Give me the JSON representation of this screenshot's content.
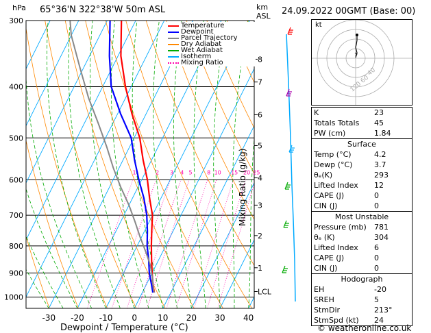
{
  "header": {
    "hpa_label": "hPa",
    "location": "65°36'N  322°38'W  50m  ASL",
    "km_label": "km",
    "asl_label": "ASL",
    "datetime": "24.09.2022  00GMT  (Base: 00)"
  },
  "legend": [
    {
      "label": "Temperature",
      "color": "#ff0000",
      "style": "solid"
    },
    {
      "label": "Dewpoint",
      "color": "#0000ff",
      "style": "solid"
    },
    {
      "label": "Parcel Trajectory",
      "color": "#888888",
      "style": "solid"
    },
    {
      "label": "Dry Adiabat",
      "color": "#ff8800",
      "style": "solid"
    },
    {
      "label": "Wet Adiabat",
      "color": "#00aa00",
      "style": "solid"
    },
    {
      "label": "Isotherm",
      "color": "#00aaff",
      "style": "solid"
    },
    {
      "label": "Mixing Ratio",
      "color": "#ff00aa",
      "style": "dotted"
    }
  ],
  "chart_data": {
    "type": "line",
    "xlabel": "Dewpoint / Temperature (°C)",
    "ylabel": "hPa",
    "right_label": "Mixing Ratio (g/kg)",
    "x_ticks": [
      "-30",
      "-20",
      "-10",
      "0",
      "10",
      "20",
      "30",
      "40"
    ],
    "x_tick_values": [
      -30,
      -20,
      -10,
      0,
      10,
      20,
      30,
      40
    ],
    "xlim": [
      -38,
      42
    ],
    "pressure_levels": [
      300,
      400,
      500,
      600,
      700,
      800,
      900,
      1000
    ],
    "pressure_labels": [
      "300",
      "400",
      "500",
      "600",
      "700",
      "800",
      "900",
      "1000"
    ],
    "ylim": [
      300,
      1050
    ],
    "skew": 1.0,
    "km_ticks": [
      "8",
      "7",
      "6",
      "5",
      "4",
      "3",
      "2",
      "1",
      "LCL"
    ],
    "km_tick_pressures": [
      355,
      392,
      452,
      517,
      595,
      670,
      765,
      880,
      976
    ],
    "mixing_ratio_labels": [
      "1",
      "2",
      "3",
      "4",
      "5",
      "8",
      "10",
      "15",
      "20",
      "25"
    ],
    "mixing_ratio_values": [
      1,
      2,
      3,
      4,
      5,
      8,
      10,
      15,
      20,
      25
    ],
    "mixing_ratio_label_pressure": 590,
    "series": [
      {
        "name": "Temperature",
        "color": "#ff0000",
        "points": [
          [
            4.2,
            980
          ],
          [
            2.5,
            950
          ],
          [
            0,
            900
          ],
          [
            -2.5,
            850
          ],
          [
            -5,
            800
          ],
          [
            -7.5,
            750
          ],
          [
            -10,
            700
          ],
          [
            -14,
            650
          ],
          [
            -18,
            600
          ],
          [
            -23,
            550
          ],
          [
            -28,
            500
          ],
          [
            -35,
            450
          ],
          [
            -42,
            400
          ],
          [
            -49,
            350
          ],
          [
            -55,
            300
          ]
        ]
      },
      {
        "name": "Dewpoint",
        "color": "#0000ff",
        "points": [
          [
            3.7,
            980
          ],
          [
            2,
            950
          ],
          [
            -1,
            900
          ],
          [
            -3.5,
            850
          ],
          [
            -6.5,
            800
          ],
          [
            -9,
            750
          ],
          [
            -12,
            700
          ],
          [
            -16,
            650
          ],
          [
            -21,
            600
          ],
          [
            -26,
            550
          ],
          [
            -31,
            500
          ],
          [
            -39,
            450
          ],
          [
            -47,
            400
          ],
          [
            -53,
            350
          ],
          [
            -59,
            300
          ]
        ]
      },
      {
        "name": "Parcel Trajectory",
        "color": "#888888",
        "points": [
          [
            4.2,
            980
          ],
          [
            3.5,
            970
          ],
          [
            1,
            920
          ],
          [
            -2,
            870
          ],
          [
            -6,
            820
          ],
          [
            -10.5,
            770
          ],
          [
            -15,
            720
          ],
          [
            -20,
            670
          ],
          [
            -26,
            620
          ],
          [
            -32,
            570
          ],
          [
            -38,
            520
          ],
          [
            -45,
            470
          ],
          [
            -53,
            420
          ],
          [
            -61,
            370
          ],
          [
            -70,
            320
          ],
          [
            -73,
            300
          ]
        ]
      }
    ]
  },
  "hodograph": {
    "unit_label": "kt",
    "ring_labels": [
      "40",
      "60",
      "120"
    ]
  },
  "indices_top": [
    {
      "label": "K",
      "value": "23"
    },
    {
      "label": "Totals Totals",
      "value": "45"
    },
    {
      "label": "PW (cm)",
      "value": "1.84"
    }
  ],
  "surface": {
    "title": "Surface",
    "rows": [
      {
        "label": "Temp (°C)",
        "value": "4.2"
      },
      {
        "label": "Dewp (°C)",
        "value": "3.7"
      },
      {
        "label": "θₑ(K)",
        "value": "293"
      },
      {
        "label": "Lifted Index",
        "value": "12"
      },
      {
        "label": "CAPE (J)",
        "value": "0"
      },
      {
        "label": "CIN (J)",
        "value": "0"
      }
    ]
  },
  "most_unstable": {
    "title": "Most Unstable",
    "rows": [
      {
        "label": "Pressure (mb)",
        "value": "781"
      },
      {
        "label": "θₑ (K)",
        "value": "304"
      },
      {
        "label": "Lifted Index",
        "value": "6"
      },
      {
        "label": "CAPE (J)",
        "value": "0"
      },
      {
        "label": "CIN (J)",
        "value": "0"
      }
    ]
  },
  "hodograph_table": {
    "title": "Hodograph",
    "rows": [
      {
        "label": "EH",
        "value": "-20"
      },
      {
        "label": "SREH",
        "value": "5"
      },
      {
        "label": "StmDir",
        "value": "213°"
      },
      {
        "label": "StmSpd (kt)",
        "value": "24"
      }
    ]
  },
  "footer": {
    "credit": "© weatheronline.co.uk"
  }
}
